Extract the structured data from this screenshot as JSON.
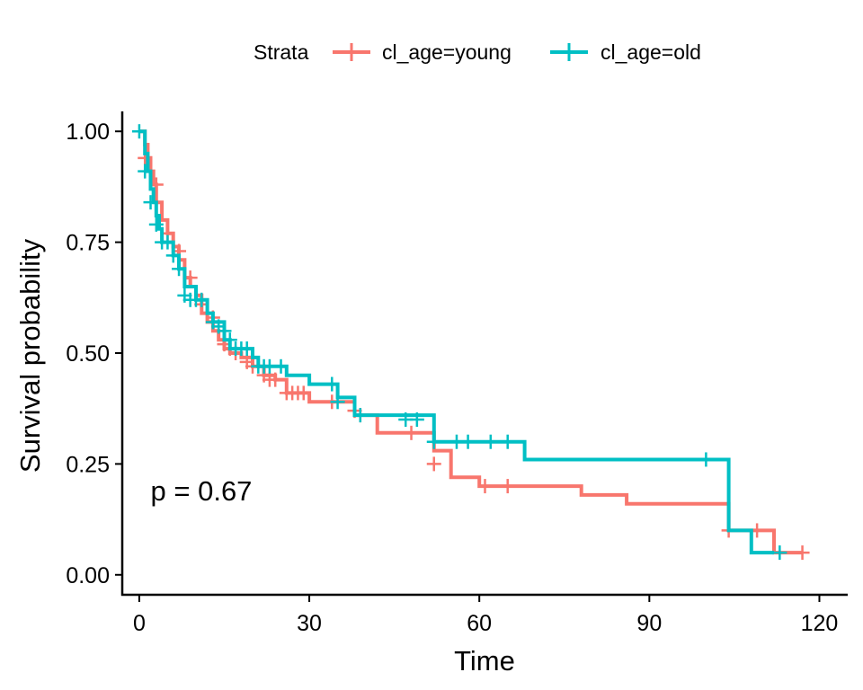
{
  "chart_data": {
    "type": "line",
    "subtype": "kaplan-meier step",
    "title": "",
    "xlabel": "Time",
    "ylabel": "Survival probability",
    "xlim": [
      -3,
      125
    ],
    "ylim": [
      -0.045,
      1.045
    ],
    "xticks": [
      0,
      30,
      60,
      90,
      120
    ],
    "xtick_labels": [
      "0",
      "30",
      "60",
      "90",
      "120"
    ],
    "yticks": [
      0,
      0.25,
      0.5,
      0.75,
      1
    ],
    "ytick_labels": [
      "0.00",
      "0.25",
      "0.50",
      "0.75",
      "1.00"
    ],
    "grid": false,
    "legend": {
      "title": "Strata",
      "placement": "top"
    },
    "annotation": {
      "text": "p = 0.67",
      "x": 2,
      "y": 0.19
    },
    "series": [
      {
        "name": "cl_age=young",
        "color": "#F8766D",
        "steps": [
          [
            0,
            1.0
          ],
          [
            1,
            0.97
          ],
          [
            1.5,
            0.94
          ],
          [
            2,
            0.91
          ],
          [
            2.5,
            0.88
          ],
          [
            3,
            0.84
          ],
          [
            4,
            0.8
          ],
          [
            5,
            0.77
          ],
          [
            6,
            0.74
          ],
          [
            7,
            0.71
          ],
          [
            8,
            0.67
          ],
          [
            9,
            0.65
          ],
          [
            10,
            0.63
          ],
          [
            11,
            0.59
          ],
          [
            12,
            0.57
          ],
          [
            13,
            0.55
          ],
          [
            14,
            0.53
          ],
          [
            15,
            0.51
          ],
          [
            16,
            0.5
          ],
          [
            18,
            0.49
          ],
          [
            20,
            0.47
          ],
          [
            22,
            0.45
          ],
          [
            24,
            0.44
          ],
          [
            26,
            0.41
          ],
          [
            30,
            0.39
          ],
          [
            38,
            0.36
          ],
          [
            42,
            0.32
          ],
          [
            52,
            0.28
          ],
          [
            55,
            0.22
          ],
          [
            60,
            0.2
          ],
          [
            78,
            0.18
          ],
          [
            86,
            0.16
          ],
          [
            104,
            0.1
          ],
          [
            112,
            0.05
          ],
          [
            117,
            0.05
          ]
        ],
        "censor_times": [
          [
            1,
            0.94
          ],
          [
            3,
            0.88
          ],
          [
            5,
            0.77
          ],
          [
            7,
            0.73
          ],
          [
            9,
            0.67
          ],
          [
            11,
            0.61
          ],
          [
            13,
            0.58
          ],
          [
            14,
            0.55
          ],
          [
            15,
            0.52
          ],
          [
            16,
            0.51
          ],
          [
            17,
            0.5
          ],
          [
            19,
            0.48
          ],
          [
            20,
            0.47
          ],
          [
            22,
            0.45
          ],
          [
            23,
            0.44
          ],
          [
            24,
            0.44
          ],
          [
            26,
            0.41
          ],
          [
            27,
            0.41
          ],
          [
            28,
            0.41
          ],
          [
            29,
            0.41
          ],
          [
            34,
            0.39
          ],
          [
            38,
            0.37
          ],
          [
            39,
            0.36
          ],
          [
            48,
            0.32
          ],
          [
            52,
            0.25
          ],
          [
            61,
            0.2
          ],
          [
            65,
            0.2
          ],
          [
            104,
            0.1
          ],
          [
            109,
            0.1
          ],
          [
            117,
            0.05
          ]
        ]
      },
      {
        "name": "cl_age=old",
        "color": "#00BFC4",
        "steps": [
          [
            0,
            1.0
          ],
          [
            1,
            0.95
          ],
          [
            1.5,
            0.91
          ],
          [
            2,
            0.87
          ],
          [
            2.5,
            0.84
          ],
          [
            3,
            0.81
          ],
          [
            3.5,
            0.78
          ],
          [
            4,
            0.75
          ],
          [
            6,
            0.72
          ],
          [
            7,
            0.69
          ],
          [
            8,
            0.65
          ],
          [
            10,
            0.62
          ],
          [
            12,
            0.59
          ],
          [
            13,
            0.57
          ],
          [
            15,
            0.53
          ],
          [
            16,
            0.51
          ],
          [
            20,
            0.49
          ],
          [
            21,
            0.47
          ],
          [
            26,
            0.45
          ],
          [
            30,
            0.43
          ],
          [
            35,
            0.4
          ],
          [
            38,
            0.36
          ],
          [
            52,
            0.3
          ],
          [
            68,
            0.26
          ],
          [
            104,
            0.1
          ],
          [
            108,
            0.05
          ],
          [
            112,
            0.05
          ]
        ],
        "censor_times": [
          [
            0,
            1.0
          ],
          [
            1,
            0.91
          ],
          [
            2,
            0.84
          ],
          [
            3,
            0.79
          ],
          [
            4,
            0.75
          ],
          [
            5,
            0.75
          ],
          [
            6,
            0.72
          ],
          [
            7,
            0.69
          ],
          [
            8,
            0.63
          ],
          [
            9,
            0.62
          ],
          [
            10,
            0.62
          ],
          [
            11,
            0.62
          ],
          [
            13,
            0.57
          ],
          [
            14,
            0.56
          ],
          [
            15,
            0.55
          ],
          [
            16,
            0.53
          ],
          [
            17,
            0.51
          ],
          [
            18,
            0.51
          ],
          [
            19,
            0.51
          ],
          [
            21,
            0.47
          ],
          [
            22,
            0.47
          ],
          [
            23,
            0.47
          ],
          [
            25,
            0.47
          ],
          [
            34,
            0.43
          ],
          [
            35,
            0.39
          ],
          [
            39,
            0.36
          ],
          [
            47,
            0.35
          ],
          [
            49,
            0.35
          ],
          [
            52,
            0.3
          ],
          [
            56,
            0.3
          ],
          [
            58,
            0.3
          ],
          [
            62,
            0.3
          ],
          [
            65,
            0.3
          ],
          [
            100,
            0.26
          ],
          [
            113,
            0.05
          ]
        ]
      }
    ]
  }
}
